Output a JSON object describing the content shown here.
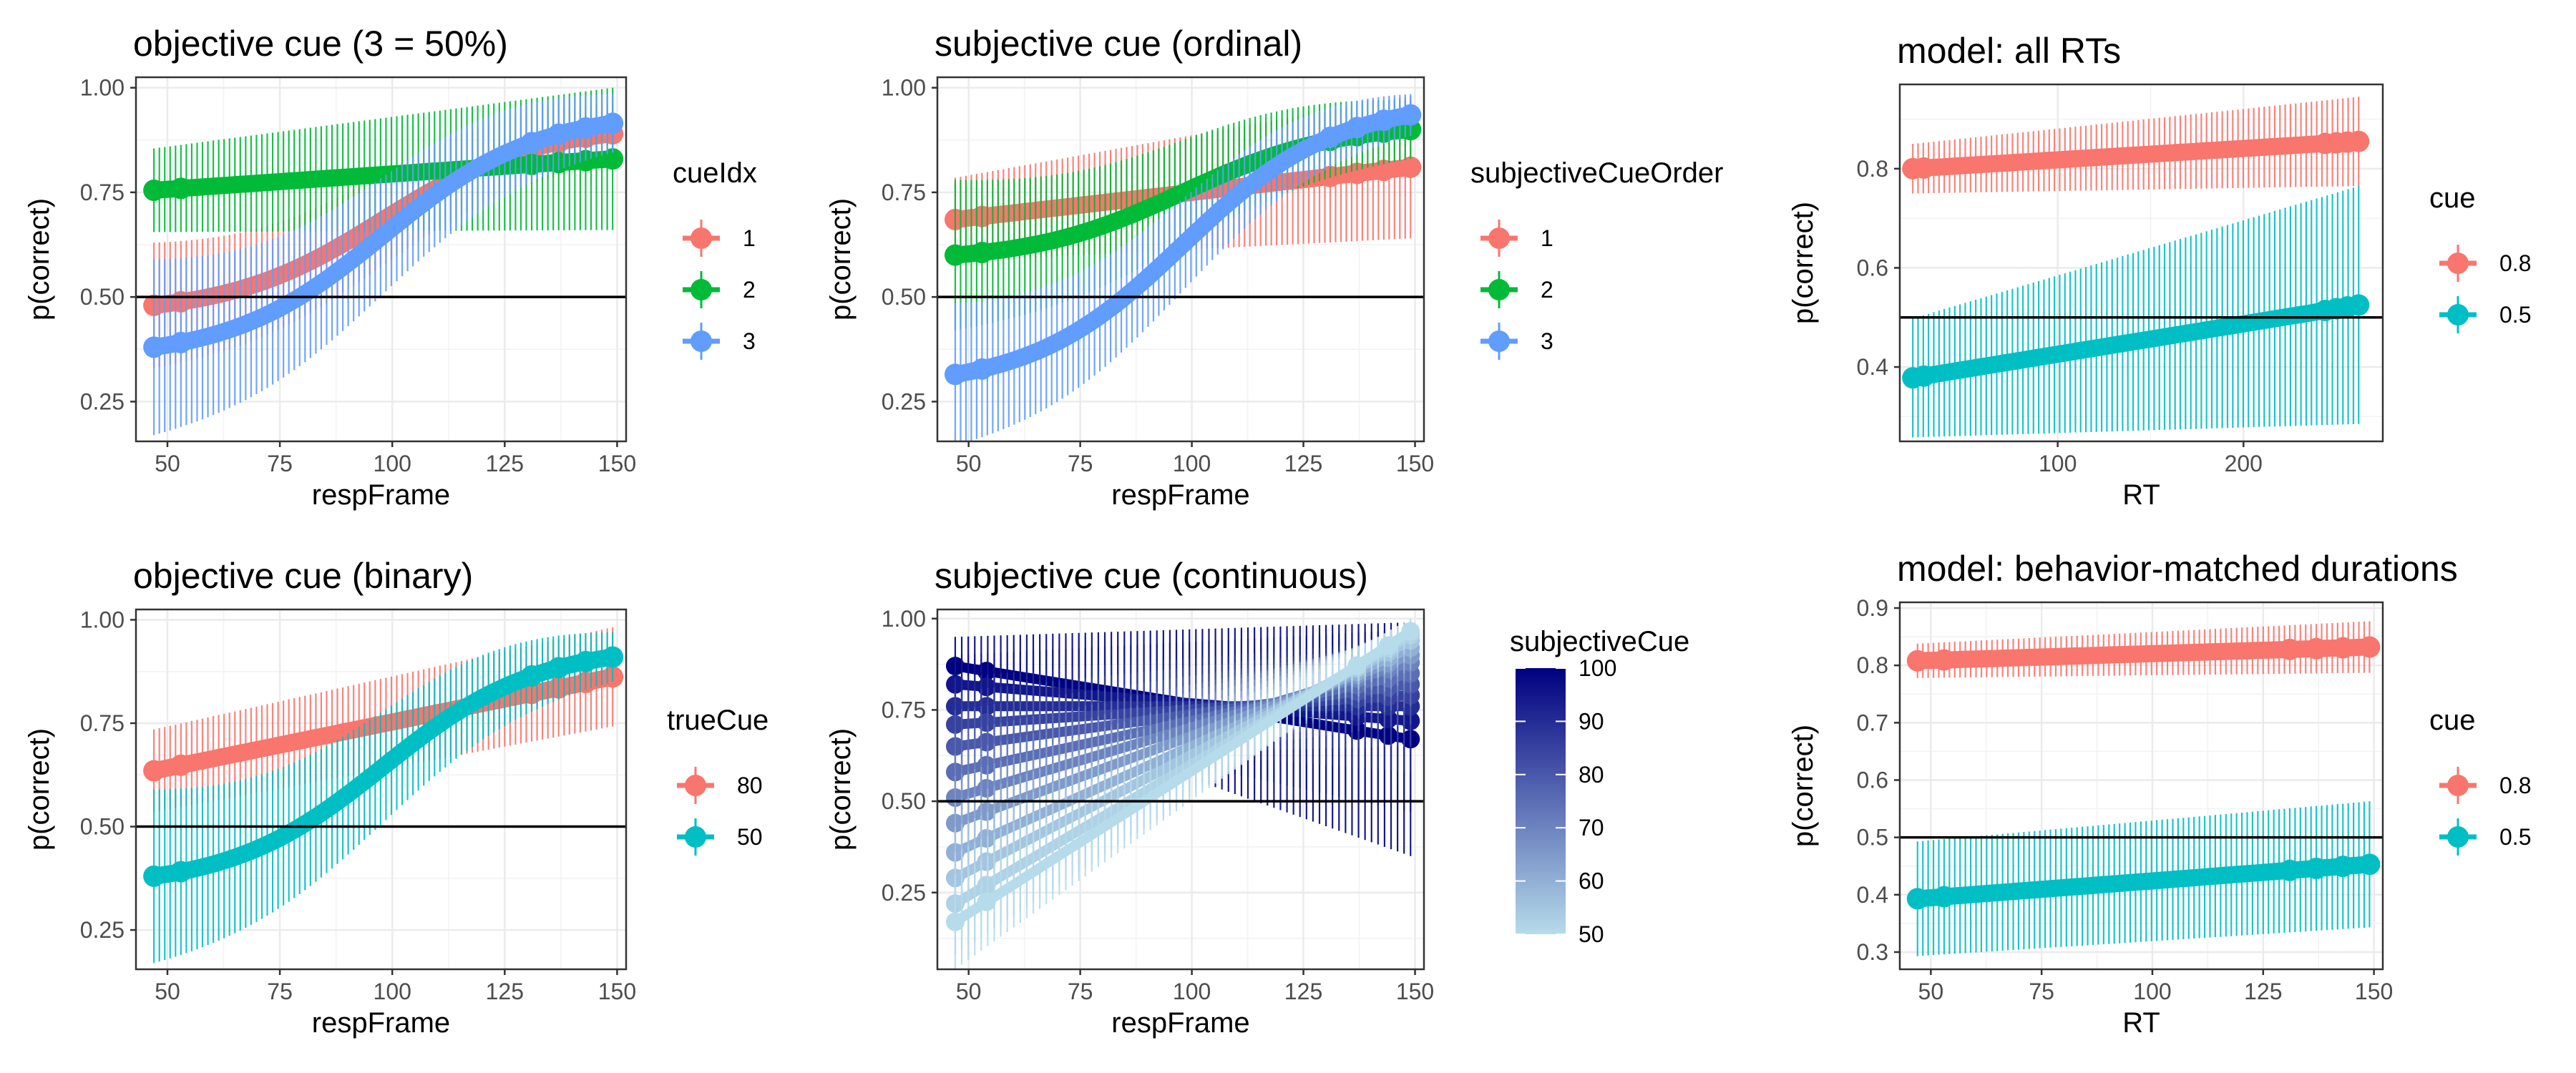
{
  "chart_data": [
    {
      "type": "line",
      "title": "objective cue (3 = 50%)",
      "xlabel": "respFrame",
      "ylabel": "p(correct)",
      "xlim": [
        43,
        152
      ],
      "ylim": [
        0.155,
        1.025
      ],
      "x_ticks": [
        50,
        75,
        100,
        125,
        150
      ],
      "y_ticks": [
        0.25,
        0.5,
        0.75,
        1.0
      ],
      "y_tick_labels": [
        "0.25",
        "0.50",
        "0.75",
        "1.00"
      ],
      "hline": 0.5,
      "grid": true,
      "legend": {
        "title": "cueIdx",
        "position": "right"
      },
      "x_range": [
        47,
        149
      ],
      "series": [
        {
          "name": "1",
          "color": "#F8766D",
          "y_start": 0.48,
          "y_end": 0.89,
          "shape": "logistic",
          "ci_start": 0.15,
          "ci_end": 0.07
        },
        {
          "name": "2",
          "color": "#00BA38",
          "y_start": 0.755,
          "y_end": 0.83,
          "shape": "linear",
          "ci_start": 0.1,
          "ci_end": 0.17
        },
        {
          "name": "3",
          "color": "#619CFF",
          "y_start": 0.38,
          "y_end": 0.915,
          "shape": "logistic",
          "ci_start": 0.21,
          "ci_end": 0.07
        }
      ]
    },
    {
      "type": "line",
      "title": "subjective cue (ordinal)",
      "xlabel": "respFrame",
      "ylabel": "p(correct)",
      "xlim": [
        43,
        152
      ],
      "ylim": [
        0.155,
        1.025
      ],
      "x_ticks": [
        50,
        75,
        100,
        125,
        150
      ],
      "y_ticks": [
        0.25,
        0.5,
        0.75,
        1.0
      ],
      "y_tick_labels": [
        "0.25",
        "0.50",
        "0.75",
        "1.00"
      ],
      "hline": 0.5,
      "grid": true,
      "legend": {
        "title": "subjectiveCueOrder",
        "position": "right"
      },
      "x_range": [
        47,
        149
      ],
      "series": [
        {
          "name": "1",
          "color": "#F8766D",
          "y_start": 0.685,
          "y_end": 0.81,
          "shape": "linear",
          "ci_start": 0.1,
          "ci_end": 0.17
        },
        {
          "name": "2",
          "color": "#00BA38",
          "y_start": 0.6,
          "y_end": 0.9,
          "shape": "logistic",
          "ci_start": 0.18,
          "ci_end": 0.07
        },
        {
          "name": "3",
          "color": "#619CFF",
          "y_start": 0.315,
          "y_end": 0.935,
          "shape": "logistic",
          "ci_start": 0.17,
          "ci_end": 0.05
        }
      ]
    },
    {
      "type": "line",
      "title": "model: all RTs",
      "xlabel": "RT",
      "ylabel": "p(correct)",
      "xlim": [
        15,
        275
      ],
      "ylim": [
        0.25,
        0.97
      ],
      "x_ticks": [
        100,
        200
      ],
      "y_ticks": [
        0.4,
        0.6,
        0.8
      ],
      "y_tick_labels": [
        "0.4",
        "0.6",
        "0.8"
      ],
      "hline": 0.5,
      "grid": true,
      "legend": {
        "title": "cue",
        "position": "right"
      },
      "x_range": [
        22,
        262
      ],
      "series": [
        {
          "name": "0.8",
          "color": "#F8766D",
          "y_start": 0.8,
          "y_end": 0.855,
          "shape": "linear",
          "ci_start": 0.05,
          "ci_end": 0.09
        },
        {
          "name": "0.5",
          "color": "#00BFC4",
          "y_start": 0.378,
          "y_end": 0.525,
          "shape": "linear",
          "ci_start": 0.12,
          "ci_end": 0.24
        }
      ]
    },
    {
      "type": "line",
      "title": "objective cue (binary)",
      "xlabel": "respFrame",
      "ylabel": "p(correct)",
      "xlim": [
        43,
        152
      ],
      "ylim": [
        0.155,
        1.025
      ],
      "x_ticks": [
        50,
        75,
        100,
        125,
        150
      ],
      "y_ticks": [
        0.25,
        0.5,
        0.75,
        1.0
      ],
      "y_tick_labels": [
        "0.25",
        "0.50",
        "0.75",
        "1.00"
      ],
      "hline": 0.5,
      "grid": true,
      "legend": {
        "title": "trueCue",
        "position": "right"
      },
      "x_range": [
        47,
        149
      ],
      "series": [
        {
          "name": "80",
          "color": "#F8766D",
          "y_start": 0.635,
          "y_end": 0.862,
          "shape": "linear",
          "ci_start": 0.1,
          "ci_end": 0.12
        },
        {
          "name": "50",
          "color": "#00BFC4",
          "y_start": 0.38,
          "y_end": 0.91,
          "shape": "logistic",
          "ci_start": 0.21,
          "ci_end": 0.06
        }
      ]
    },
    {
      "type": "line",
      "title": "subjective cue (continuous)",
      "xlabel": "respFrame",
      "ylabel": "p(correct)",
      "xlim": [
        43,
        152
      ],
      "ylim": [
        0.04,
        1.025
      ],
      "x_ticks": [
        50,
        75,
        100,
        125,
        150
      ],
      "y_ticks": [
        0.25,
        0.5,
        0.75,
        1.0
      ],
      "y_tick_labels": [
        "0.25",
        "0.50",
        "0.75",
        "1.00"
      ],
      "hline": 0.5,
      "grid": true,
      "legend": {
        "title": "subjectiveCue",
        "position": "right",
        "type": "colorbar",
        "ticks": [
          100,
          90,
          80,
          70,
          60,
          50
        ],
        "low_color": "#B6DBEA",
        "high_color": "#000080"
      },
      "x_range": [
        47,
        149
      ],
      "series": [
        {
          "level": 100,
          "y_start": 0.87,
          "y_end": 0.67,
          "ci_start": 0.08,
          "ci_end": 0.32
        },
        {
          "level": 95,
          "y_start": 0.82,
          "y_end": 0.72,
          "ci_start": 0.08,
          "ci_end": 0.25
        },
        {
          "level": 90,
          "y_start": 0.76,
          "y_end": 0.76,
          "ci_start": 0.08,
          "ci_end": 0.18
        },
        {
          "level": 85,
          "y_start": 0.71,
          "y_end": 0.79,
          "ci_start": 0.09,
          "ci_end": 0.14
        },
        {
          "level": 80,
          "y_start": 0.65,
          "y_end": 0.82,
          "ci_start": 0.1,
          "ci_end": 0.11
        },
        {
          "level": 75,
          "y_start": 0.58,
          "y_end": 0.85,
          "ci_start": 0.11,
          "ci_end": 0.09
        },
        {
          "level": 70,
          "y_start": 0.51,
          "y_end": 0.88,
          "ci_start": 0.12,
          "ci_end": 0.08
        },
        {
          "level": 65,
          "y_start": 0.44,
          "y_end": 0.9,
          "ci_start": 0.13,
          "ci_end": 0.07
        },
        {
          "level": 60,
          "y_start": 0.36,
          "y_end": 0.92,
          "ci_start": 0.14,
          "ci_end": 0.06
        },
        {
          "level": 55,
          "y_start": 0.29,
          "y_end": 0.94,
          "ci_start": 0.14,
          "ci_end": 0.05
        },
        {
          "level": 52,
          "y_start": 0.22,
          "y_end": 0.955,
          "ci_start": 0.14,
          "ci_end": 0.04
        },
        {
          "level": 50,
          "y_start": 0.17,
          "y_end": 0.965,
          "ci_start": 0.13,
          "ci_end": 0.035
        }
      ]
    },
    {
      "type": "line",
      "title": "model: behavior-matched durations",
      "xlabel": "RT",
      "ylabel": "p(correct)",
      "xlim": [
        43,
        152
      ],
      "ylim": [
        0.27,
        0.91
      ],
      "x_ticks": [
        50,
        75,
        100,
        125,
        150
      ],
      "y_ticks": [
        0.3,
        0.4,
        0.5,
        0.6,
        0.7,
        0.8,
        0.9
      ],
      "y_tick_labels": [
        "0.3",
        "0.4",
        "0.5",
        "0.6",
        "0.7",
        "0.8",
        "0.9"
      ],
      "hline": 0.5,
      "grid": true,
      "legend": {
        "title": "cue",
        "position": "right"
      },
      "x_range": [
        47,
        149
      ],
      "series": [
        {
          "name": "0.8",
          "color": "#F8766D",
          "y_start": 0.808,
          "y_end": 0.832,
          "shape": "linear",
          "ci_start": 0.03,
          "ci_end": 0.045
        },
        {
          "name": "0.5",
          "color": "#00BFC4",
          "y_start": 0.393,
          "y_end": 0.453,
          "shape": "linear",
          "ci_start": 0.1,
          "ci_end": 0.11
        }
      ]
    }
  ]
}
